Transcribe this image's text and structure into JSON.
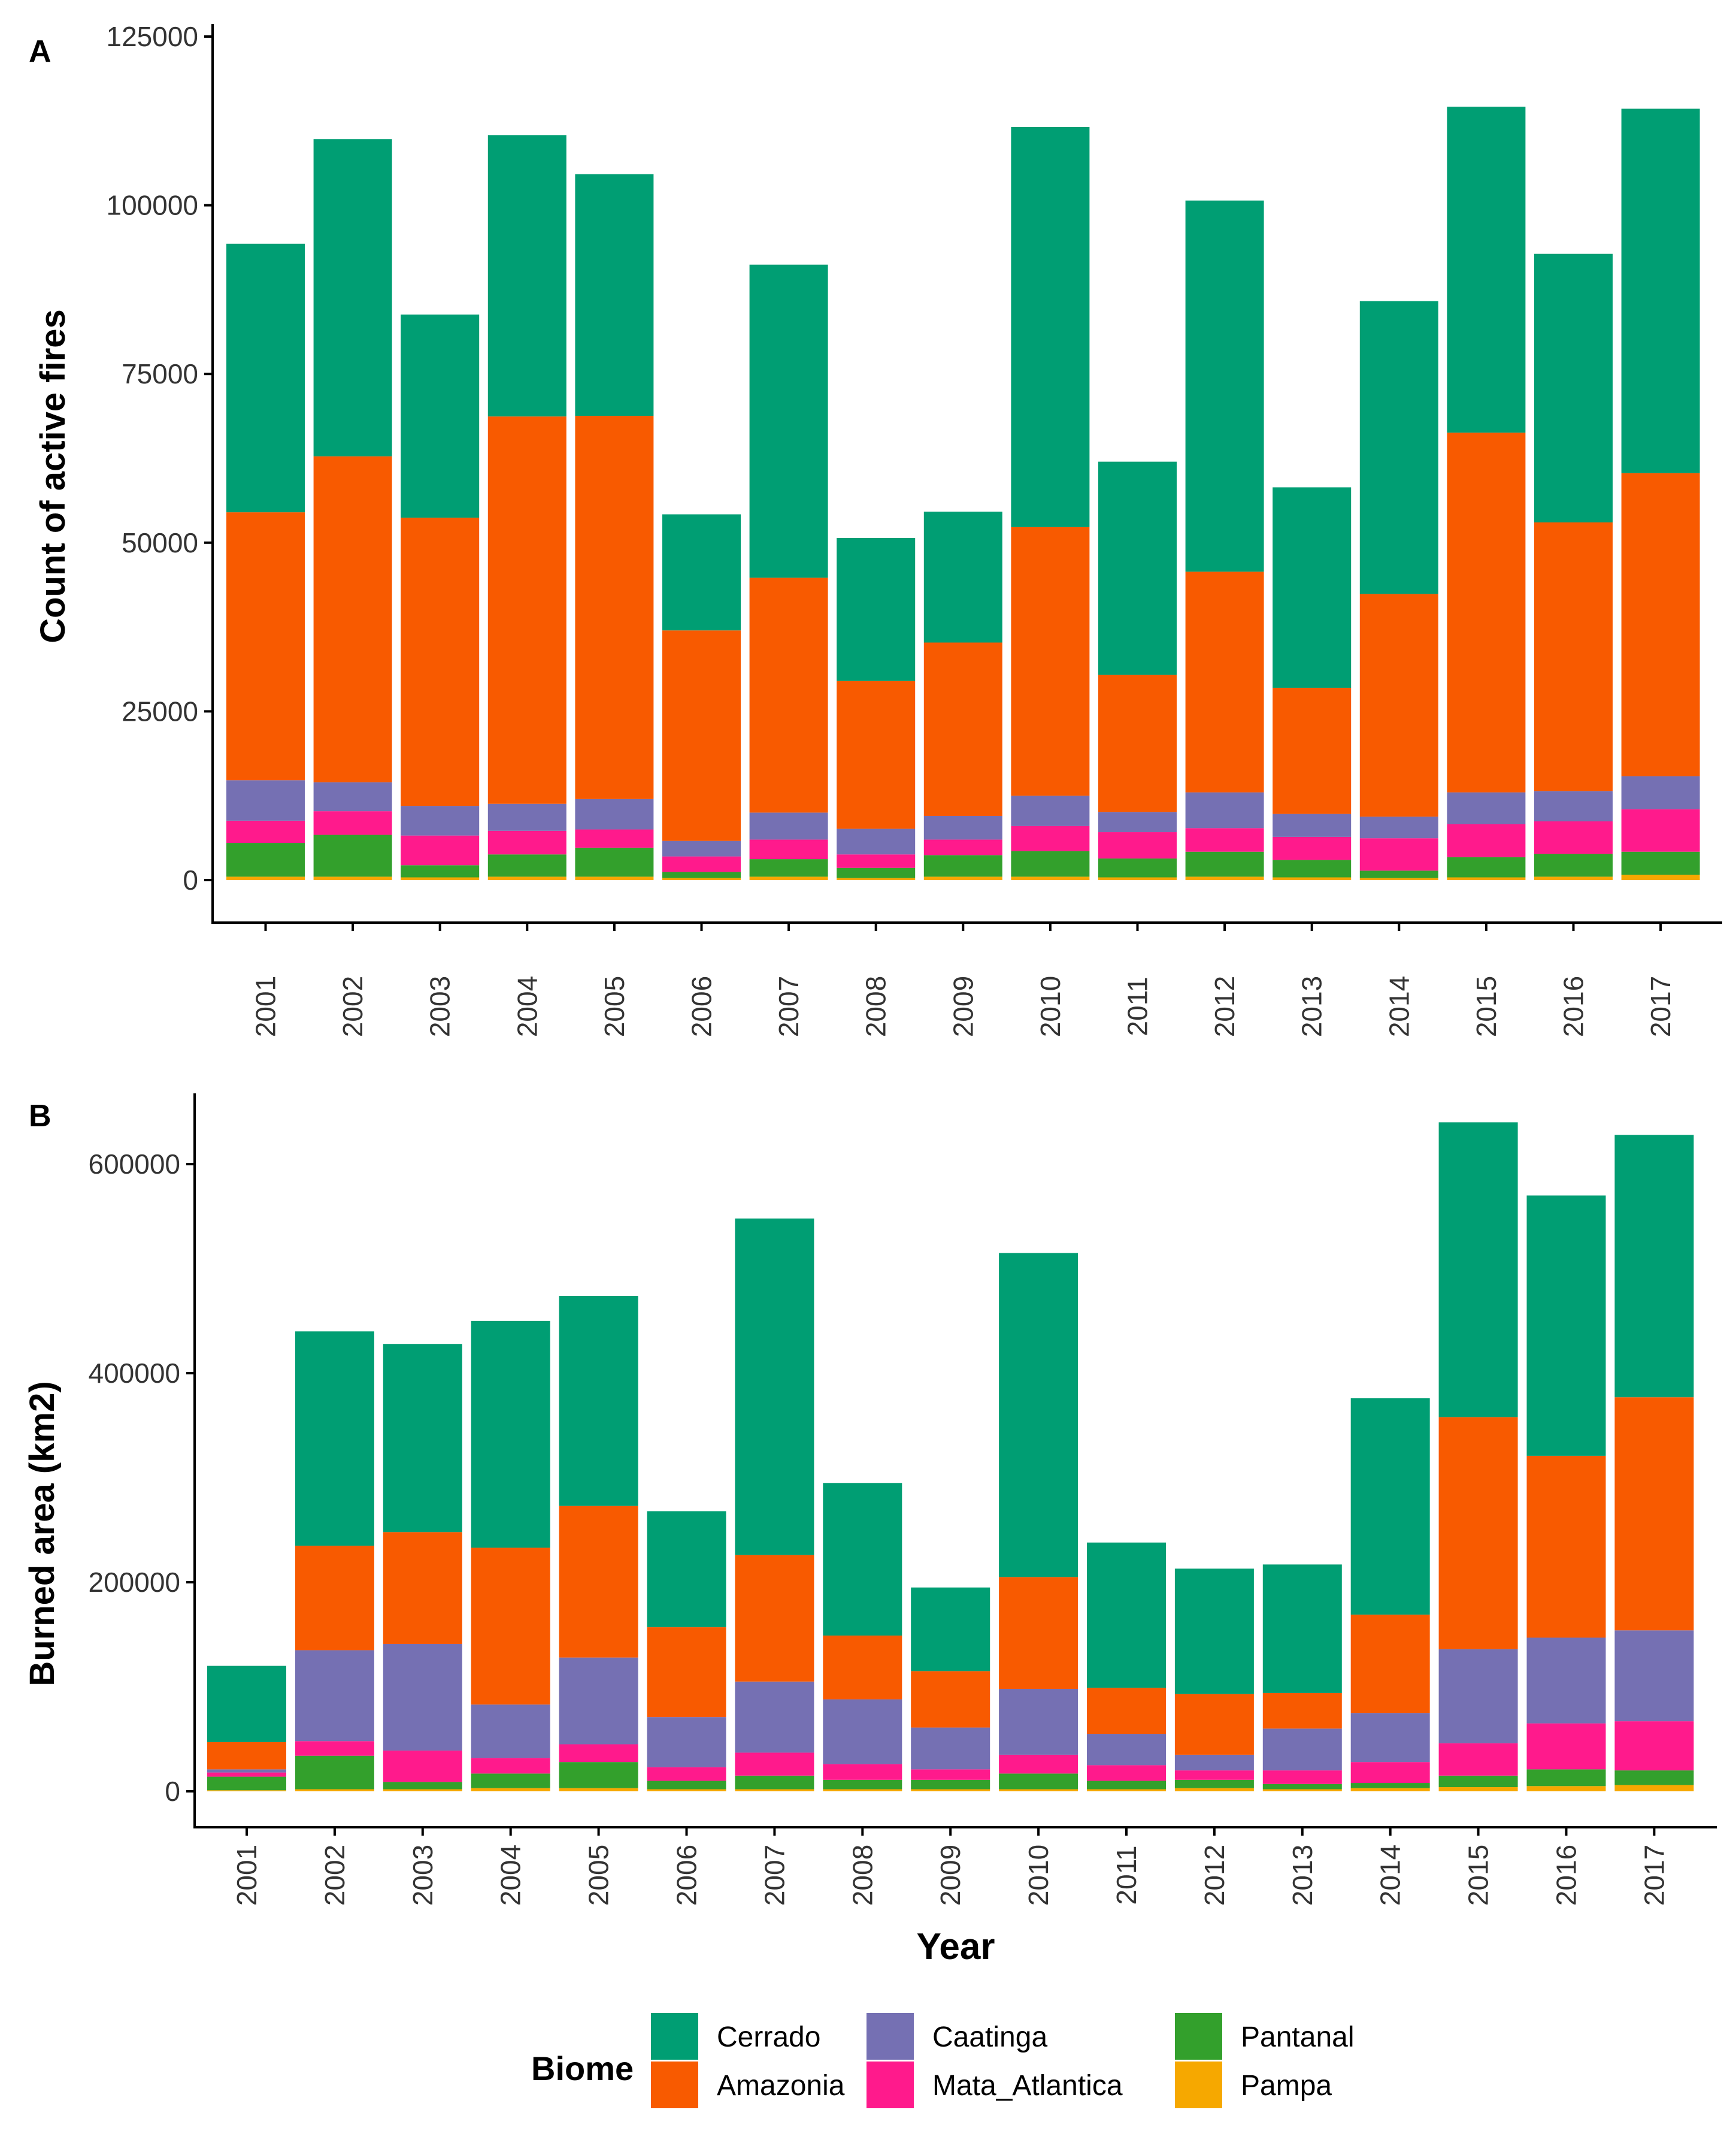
{
  "figure": {
    "x_axis_title": "Year",
    "legend_title": "Biome"
  },
  "chart_data": [
    {
      "type": "bar",
      "stacked": true,
      "panel_label": "A",
      "title": "",
      "xlabel": "",
      "ylabel": "Count of active fires",
      "ylim": [
        0,
        125000
      ],
      "yticks": [
        0,
        25000,
        50000,
        75000,
        100000,
        125000
      ],
      "ytick_labels": [
        "0",
        "25000",
        "50000",
        "75000",
        "100000",
        "125000"
      ],
      "categories": [
        "2001",
        "2002",
        "2003",
        "2004",
        "2005",
        "2006",
        "2007",
        "2008",
        "2009",
        "2010",
        "2011",
        "2012",
        "2013",
        "2014",
        "2015",
        "2016",
        "2017"
      ],
      "series": [
        {
          "name": "Pampa",
          "color": "#f6a800",
          "values": [
            500,
            500,
            400,
            500,
            500,
            300,
            500,
            300,
            500,
            500,
            400,
            500,
            400,
            300,
            400,
            500,
            800
          ]
        },
        {
          "name": "Pantanal",
          "color": "#33a02c",
          "values": [
            5000,
            6200,
            1800,
            3300,
            4300,
            900,
            2600,
            1500,
            3200,
            3800,
            2800,
            3700,
            2600,
            1100,
            3000,
            3400,
            3400
          ]
        },
        {
          "name": "Mata_Atlantica",
          "color": "#ff1a8c",
          "values": [
            3300,
            3500,
            4400,
            3500,
            2700,
            2300,
            2900,
            2000,
            2300,
            3700,
            3900,
            3500,
            3400,
            4800,
            4900,
            4800,
            6300
          ]
        },
        {
          "name": "Caatinga",
          "color": "#7570b3",
          "values": [
            6000,
            4300,
            4400,
            4000,
            4500,
            2300,
            4000,
            3800,
            3500,
            4500,
            3000,
            5300,
            3400,
            3200,
            4700,
            4500,
            4900
          ]
        },
        {
          "name": "Amazonia",
          "color": "#f85a00",
          "values": [
            39700,
            48300,
            42700,
            57400,
            56800,
            31200,
            34800,
            21900,
            25700,
            39800,
            20300,
            32700,
            18700,
            33000,
            53300,
            39800,
            44900
          ]
        },
        {
          "name": "Cerrado",
          "color": "#009e73",
          "values": [
            39800,
            47000,
            30100,
            41700,
            35800,
            17200,
            46400,
            21200,
            19400,
            59300,
            31600,
            55000,
            29700,
            43400,
            48300,
            39800,
            54000
          ]
        }
      ]
    },
    {
      "type": "bar",
      "stacked": true,
      "panel_label": "B",
      "title": "",
      "xlabel": "Year",
      "ylabel": "Burned area (km2)",
      "ylim": [
        0,
        670000
      ],
      "yticks": [
        0,
        200000,
        400000,
        600000
      ],
      "ytick_labels": [
        "0",
        "200000",
        "400000",
        "600000"
      ],
      "categories": [
        "2001",
        "2002",
        "2003",
        "2004",
        "2005",
        "2006",
        "2007",
        "2008",
        "2009",
        "2010",
        "2011",
        "2012",
        "2013",
        "2014",
        "2015",
        "2016",
        "2017"
      ],
      "series": [
        {
          "name": "Pampa",
          "color": "#f6a800",
          "values": [
            1000,
            2000,
            2000,
            3000,
            3000,
            2000,
            2000,
            2000,
            2000,
            2000,
            2000,
            3000,
            2000,
            3000,
            4000,
            5000,
            6000
          ]
        },
        {
          "name": "Pantanal",
          "color": "#33a02c",
          "values": [
            13000,
            32000,
            7000,
            14000,
            25000,
            8000,
            13000,
            9000,
            9000,
            15000,
            8000,
            8000,
            5000,
            5000,
            11000,
            16000,
            14000
          ]
        },
        {
          "name": "Mata_Atlantica",
          "color": "#ff1a8c",
          "values": [
            4000,
            14000,
            30000,
            15000,
            17000,
            13000,
            22000,
            15000,
            10000,
            18000,
            15000,
            9000,
            13000,
            20000,
            31000,
            44000,
            47000
          ]
        },
        {
          "name": "Caatinga",
          "color": "#7570b3",
          "values": [
            3000,
            87000,
            102000,
            51000,
            83000,
            48000,
            68000,
            62000,
            40000,
            63000,
            30000,
            15000,
            40000,
            47000,
            90000,
            82000,
            87000
          ]
        },
        {
          "name": "Amazonia",
          "color": "#f85a00",
          "values": [
            26000,
            100000,
            107000,
            150000,
            145000,
            86000,
            121000,
            61000,
            54000,
            107000,
            44000,
            58000,
            34000,
            94000,
            222000,
            174000,
            223000
          ]
        },
        {
          "name": "Cerrado",
          "color": "#009e73",
          "values": [
            73000,
            205000,
            180000,
            217000,
            201000,
            111000,
            322000,
            146000,
            80000,
            310000,
            139000,
            120000,
            123000,
            207000,
            282000,
            249000,
            251000
          ]
        }
      ]
    }
  ]
}
